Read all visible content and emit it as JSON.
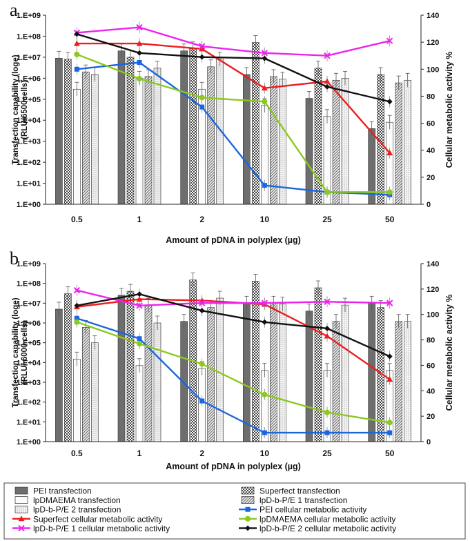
{
  "legend_items": [
    {
      "label": "PEI transfection",
      "kind": "bar",
      "pattern": "dark"
    },
    {
      "label": "Superfect transfection",
      "kind": "bar",
      "pattern": "check"
    },
    {
      "label": "lpDMAEMA transfection",
      "kind": "bar",
      "pattern": "white"
    },
    {
      "label": "lpD-b-P/E 1 transfection",
      "kind": "bar",
      "pattern": "diag"
    },
    {
      "label": "lpD-b-P/E 2 transfection",
      "kind": "bar",
      "pattern": "dots"
    },
    {
      "label": "PEI cellular metabolic activity",
      "kind": "line",
      "color": "#1a66e0",
      "marker": "square"
    },
    {
      "label": "Superfect cellular metabolic activity",
      "kind": "line",
      "color": "#ee1c1c",
      "marker": "triangle"
    },
    {
      "label": "lpDMAEMA cellular metabolic activity",
      "kind": "line",
      "color": "#8cc81e",
      "marker": "circle"
    },
    {
      "label": "lpD-b-P/E 1 cellular metabolic activity",
      "kind": "line",
      "color": "#ee22ee",
      "marker": "x"
    },
    {
      "label": "lpD-b-P/E 2 cellular metabolic activity",
      "kind": "line",
      "color": "#111111",
      "marker": "diamond"
    }
  ],
  "chart_data": [
    {
      "type": "bar",
      "panel": "a",
      "categories": [
        "0.5",
        "1",
        "2",
        "10",
        "25",
        "50"
      ],
      "xlabel": "Amount of pDNA in polyplex (µg)",
      "ylabel": "Transfection capability (loge) (RLU/6500cells)",
      "ylabel_lines": [
        "Transfection capability (loge)",
        "(RLU/6500cells)"
      ],
      "y_scale": "log",
      "ylim": [
        1,
        1000000000
      ],
      "yticks": [
        "1.E+00",
        "1.E+01",
        "1.E+02",
        "1.E+03",
        "1.E+04",
        "1.E+05",
        "1.E+06",
        "1.E+07",
        "1.E+08",
        "1.E+09"
      ],
      "y2label": "Cellular metabolic activity %",
      "y2lim": [
        0,
        140
      ],
      "y2ticks": [
        "0",
        "20",
        "40",
        "60",
        "80",
        "100",
        "120",
        "140"
      ],
      "bar_series": [
        {
          "name": "PEI transfection",
          "values": [
            9000000,
            20000000,
            20000000,
            1500000,
            110000,
            4000
          ]
        },
        {
          "name": "Superfect transfection",
          "values": [
            8000000,
            10000000,
            25000000,
            50000000,
            3000000,
            1500000
          ]
        },
        {
          "name": "lpDMAEMA transfection",
          "values": [
            300000,
            1000000,
            300000,
            50000,
            15000,
            8000
          ]
        },
        {
          "name": "lpD-b-P/E 1 transfection",
          "values": [
            2000000,
            1200000,
            3500000,
            1200000,
            800000,
            600000
          ]
        },
        {
          "name": "lpD-b-P/E 2 transfection",
          "values": [
            1500000,
            3000000,
            8000000,
            900000,
            1000000,
            800000
          ]
        }
      ],
      "line_series": [
        {
          "name": "PEI cellular metabolic activity",
          "values": [
            100,
            105,
            72,
            14,
            9,
            7
          ]
        },
        {
          "name": "Superfect cellular metabolic activity",
          "values": [
            119,
            119,
            115,
            86,
            91,
            38
          ]
        },
        {
          "name": "lpDMAEMA cellular metabolic activity",
          "values": [
            111,
            93,
            79,
            76,
            9,
            9
          ]
        },
        {
          "name": "lpD-b-P/E 1 cellular metabolic activity",
          "values": [
            127,
            131,
            117,
            112,
            110,
            121
          ]
        },
        {
          "name": "lpD-b-P/E 2 cellular metabolic activity",
          "values": [
            126,
            112,
            109,
            108,
            87,
            76
          ]
        }
      ]
    },
    {
      "type": "bar",
      "panel": "b",
      "categories": [
        "0.5",
        "1",
        "2",
        "10",
        "25",
        "50"
      ],
      "xlabel": "Amount of pDNA in polyplex (µg)",
      "ylabel": "Transfection capability (loge) (RLU/ 6000 cells)",
      "ylabel_lines": [
        "Transfection capability (loge)",
        "(RLU/ 6000 cells)"
      ],
      "y_scale": "log",
      "ylim": [
        1,
        1000000000
      ],
      "yticks": [
        "1.E+00",
        "1.E+01",
        "1.E+02",
        "1.E+03",
        "1.E+04",
        "1.E+05",
        "1.E+06",
        "1.E+07",
        "1.E+08",
        "1.E+09"
      ],
      "y2label": "Cellular metabolic activity %",
      "y2lim": [
        0,
        140
      ],
      "y2ticks": [
        "0",
        "20",
        "40",
        "60",
        "80",
        "100",
        "120",
        "140"
      ],
      "bar_series": [
        {
          "name": "PEI transfection",
          "values": [
            5000000,
            25000000,
            1200000,
            10000000,
            4000000,
            10000000
          ]
        },
        {
          "name": "Superfect transfection",
          "values": [
            30000000,
            40000000,
            150000000,
            130000000,
            60000000,
            6000000
          ]
        },
        {
          "name": "lpDMAEMA transfection",
          "values": [
            15000,
            7000,
            5000,
            4000,
            4000,
            4000
          ]
        },
        {
          "name": "lpD-b-P/E 1 transfection",
          "values": [
            600000,
            8000000,
            6000000,
            10000000,
            1200000,
            1200000
          ]
        },
        {
          "name": "lpD-b-P/E 2 transfection",
          "values": [
            100000,
            1000000,
            18000000,
            9000000,
            8000000,
            1200000
          ]
        }
      ],
      "line_series": [
        {
          "name": "PEI cellular metabolic activity",
          "values": [
            97,
            81,
            32,
            7,
            7,
            7
          ]
        },
        {
          "name": "Superfect cellular metabolic activity",
          "values": [
            106,
            112,
            111,
            108,
            83,
            49
          ]
        },
        {
          "name": "lpDMAEMA cellular metabolic activity",
          "values": [
            94,
            77,
            61,
            37,
            23,
            15
          ]
        },
        {
          "name": "lpD-b-P/E 1 cellular metabolic activity",
          "values": [
            119,
            107,
            109,
            109,
            110,
            109
          ]
        },
        {
          "name": "lpD-b-P/E 2 cellular metabolic activity",
          "values": [
            107,
            116,
            103,
            94,
            89,
            67
          ]
        }
      ]
    }
  ]
}
